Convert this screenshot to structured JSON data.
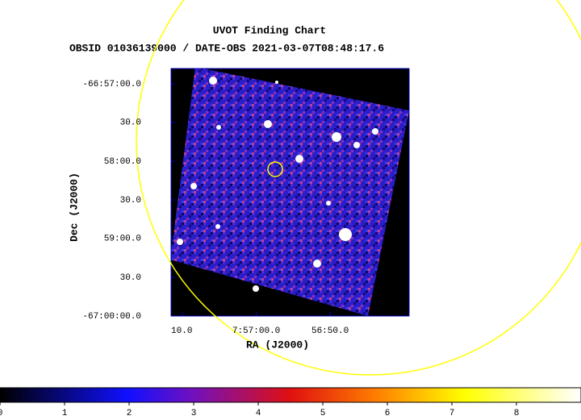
{
  "chart_data": {
    "type": "image",
    "title": "UVOT Finding Chart",
    "subtitle": "OBSID 01036139000 / DATE-OBS 2021-03-07T08:48:17.6",
    "x_label": "RA (J2000)",
    "y_label": "Dec (J2000)",
    "xlim": [
      119.2981,
      119.1637
    ],
    "xticks": [
      {
        "value": 119.2917,
        "label": "10.0"
      },
      {
        "value": 119.25,
        "label": "7:57:00.0"
      },
      {
        "value": 119.2083,
        "label": "56:50.0"
      }
    ],
    "ylim": [
      -67.0,
      -66.9467
    ],
    "yticks": [
      {
        "value": -67.0,
        "label": "-67:00:00.0"
      },
      {
        "value": -66.9917,
        "label": "30.0"
      },
      {
        "value": -66.9833,
        "label": "59:00.0"
      },
      {
        "value": -66.975,
        "label": "30.0"
      },
      {
        "value": -66.9667,
        "label": "58:00.0"
      },
      {
        "value": -66.9583,
        "label": "30.0"
      },
      {
        "value": -66.95,
        "label": "-66:57:00.0"
      }
    ],
    "colorbar": {
      "lim": [
        0,
        9
      ],
      "ticks": [
        0,
        1,
        2,
        3,
        4,
        5,
        6,
        7,
        8
      ]
    }
  }
}
